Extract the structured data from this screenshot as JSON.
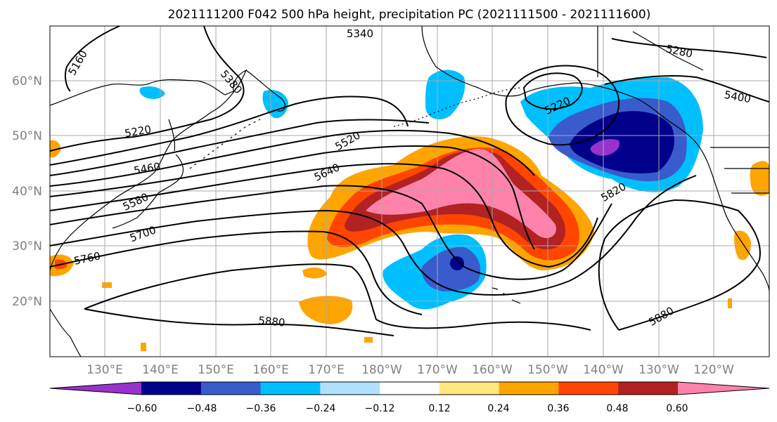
{
  "title": "2021111200 F042 500 hPa height, precipitation PC (2021111500 - 2021111600)",
  "map": {
    "extent": {
      "lon_min": 120,
      "lon_max": 250,
      "lat_min": 10,
      "lat_max": 70
    },
    "lat_labels": [
      "20°N",
      "30°N",
      "40°N",
      "50°N",
      "60°N"
    ],
    "lon_labels": [
      "130°E",
      "140°E",
      "150°E",
      "160°E",
      "170°E",
      "180°W",
      "170°W",
      "160°W",
      "150°W",
      "140°W",
      "130°W",
      "120°W"
    ],
    "contour_labels": [
      "5160",
      "5340",
      "5380",
      "5280",
      "5220",
      "5460",
      "5580",
      "5700",
      "5760",
      "5520",
      "5640",
      "5220",
      "5400",
      "5820",
      "5880",
      "5880"
    ],
    "grid": true,
    "contour_color": "#000000"
  },
  "colorbar": {
    "ticks": [
      "−0.60",
      "−0.48",
      "−0.36",
      "−0.24",
      "−0.12",
      "0.12",
      "0.24",
      "0.36",
      "0.48",
      "0.60"
    ],
    "colors": [
      "#9932cc",
      "#00008b",
      "#3a5bcc",
      "#00bfff",
      "#b0e2ff",
      "#ffffff",
      "#ffe97f",
      "#ffa500",
      "#ff4500",
      "#b22222",
      "#ff82ab"
    ],
    "extend": "both"
  }
}
